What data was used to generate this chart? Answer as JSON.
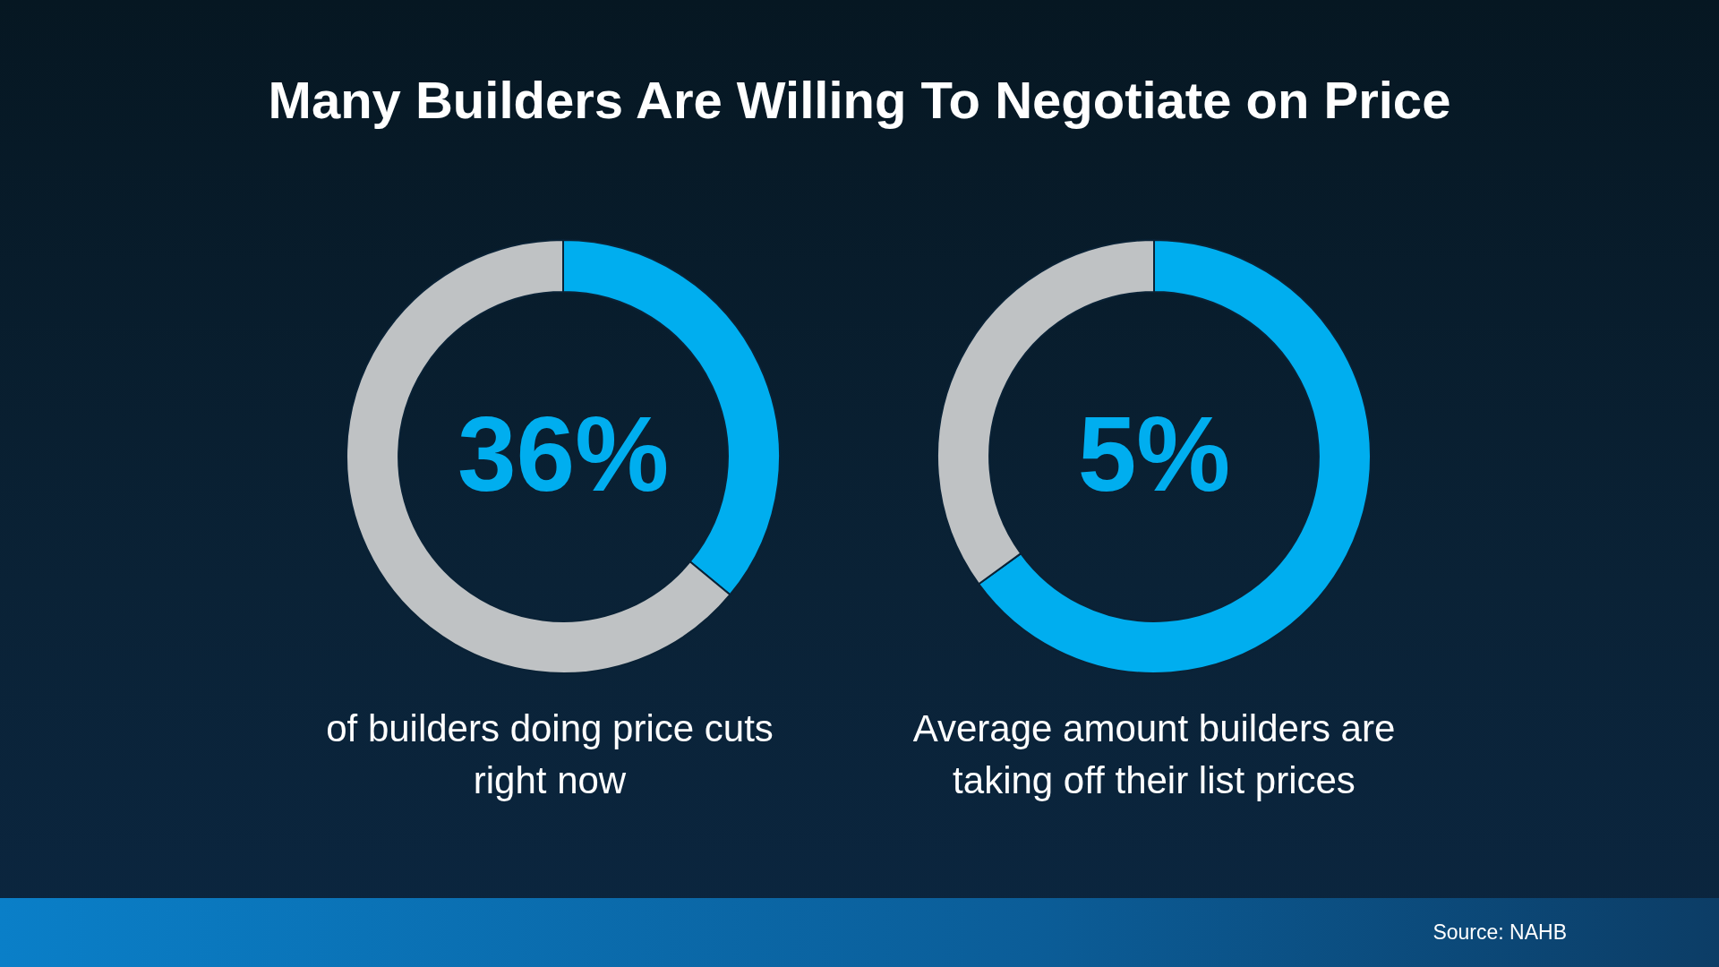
{
  "chart_data": [
    {
      "type": "donut",
      "title": "Many Builders Are Willing To Negotiate on Price",
      "categories": [
        null,
        null
      ],
      "values": [
        36,
        64
      ],
      "colors": [
        "#00aeef",
        "#bfc2c4"
      ],
      "annotations": [
        "36%",
        "of builders doing price cuts right now"
      ]
    },
    {
      "type": "donut",
      "categories": [
        null,
        null
      ],
      "values": [
        65,
        35
      ],
      "colors": [
        "#00aeef",
        "#bfc2c4"
      ],
      "annotations": [
        "5%",
        "Average amount builders are taking off their list prices",
        "Source: NAHB"
      ]
    }
  ]
}
